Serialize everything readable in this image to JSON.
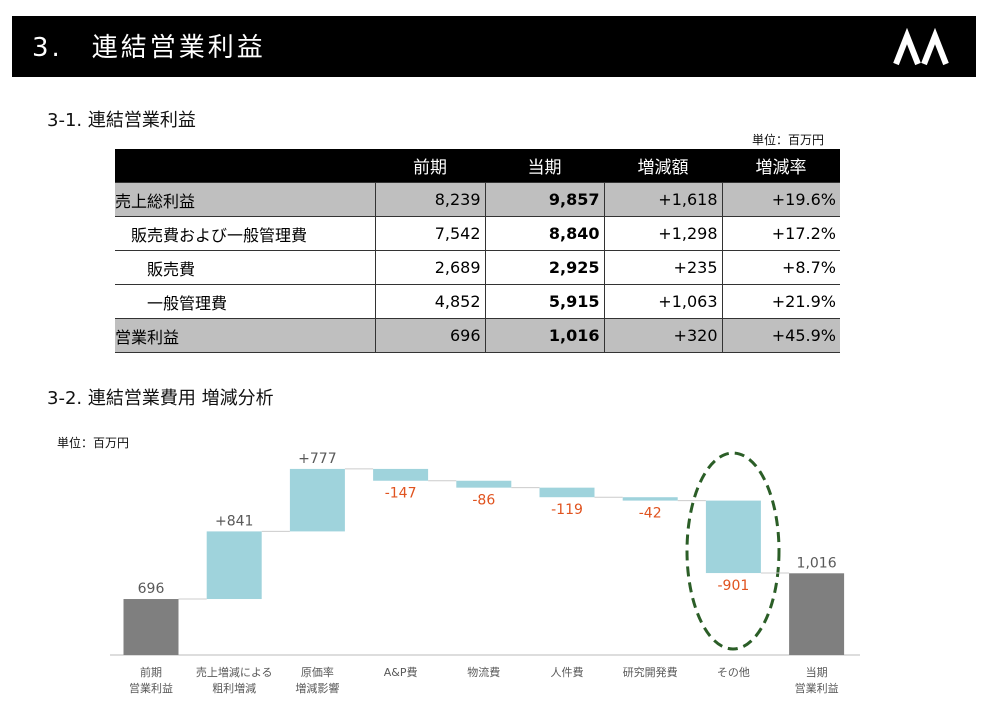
{
  "header": {
    "title": "3.　連結営業利益"
  },
  "section1": {
    "title": "3-1. 連結営業利益",
    "unit": "単位：百万円"
  },
  "table": {
    "columns": [
      "前期",
      "当期",
      "増減額",
      "増減率"
    ],
    "rows": [
      {
        "label": "売上総利益",
        "cells": [
          "8,239",
          "9,857",
          "+1,618",
          "+19.6%"
        ]
      },
      {
        "label": "販売費および一般管理費",
        "cells": [
          "7,542",
          "8,840",
          "+1,298",
          "+17.2%"
        ]
      },
      {
        "label": "販売費",
        "cells": [
          "2,689",
          "2,925",
          "+235",
          "+8.7%"
        ]
      },
      {
        "label": "一般管理費",
        "cells": [
          "4,852",
          "5,915",
          "+1,063",
          "+21.9%"
        ]
      },
      {
        "label": "営業利益",
        "cells": [
          "696",
          "1,016",
          "+320",
          "+45.9%"
        ]
      }
    ]
  },
  "section2": {
    "title": "3-2. 連結営業費用 増減分析"
  },
  "chart_data": {
    "type": "waterfall",
    "unit": "単位：百万円",
    "categories": [
      "前期\n営業利益",
      "売上増減による\n粗利増減",
      "原価率\n増減影響",
      "A&P費",
      "物流費",
      "人件費",
      "研究開発費",
      "その他",
      "当期\n営業利益"
    ],
    "values": [
      696,
      841,
      777,
      -147,
      -86,
      -119,
      -42,
      -901,
      1016
    ],
    "value_labels": [
      "696",
      "+841",
      "+777",
      "-147",
      "-86",
      "-119",
      "-42",
      "-901",
      "1,016"
    ],
    "total_color": "#7f7f7f",
    "delta_color": "#9fd3dc",
    "positive_label_color": "#595959",
    "negative_label_color": "#e0531f",
    "ylim": [
      0,
      2400
    ]
  }
}
